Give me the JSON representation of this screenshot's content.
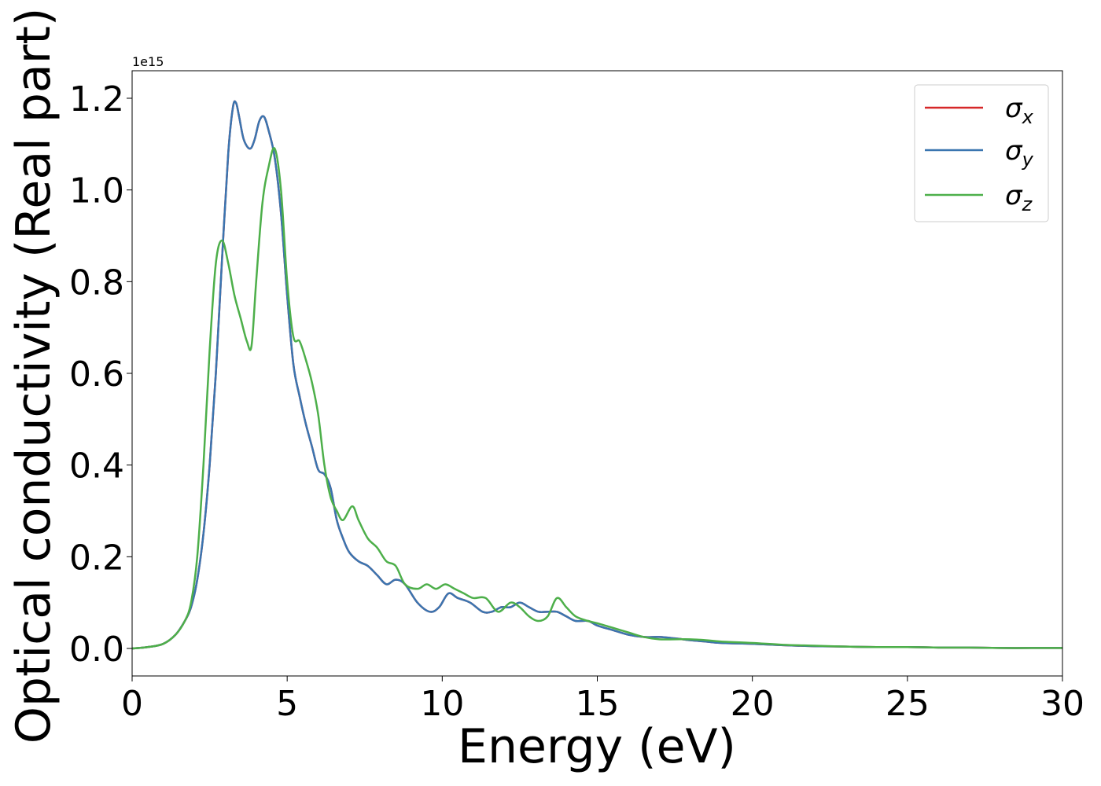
{
  "chart_data": {
    "type": "line",
    "xlabel": "Energy (eV)",
    "ylabel": "Optical conductivity (Real part)",
    "y_offset_label": "1e15",
    "xlim": [
      0,
      30
    ],
    "ylim": [
      -0.06,
      1.26
    ],
    "x_ticks": [
      0,
      5,
      10,
      15,
      20,
      25,
      30
    ],
    "y_ticks": [
      0.0,
      0.2,
      0.4,
      0.6,
      0.8,
      1.0,
      1.2
    ],
    "x_tick_labels": [
      "0",
      "5",
      "10",
      "15",
      "20",
      "25",
      "30"
    ],
    "y_tick_labels": [
      "0.0",
      "0.2",
      "0.4",
      "0.6",
      "0.8",
      "1.0",
      "1.2"
    ],
    "legend_position": "upper-right",
    "grid": false,
    "series": [
      {
        "name": "σx",
        "legend_base": "σ",
        "legend_sub": "x",
        "color": "#d62728",
        "x": [
          0,
          0.5,
          1.0,
          1.4,
          1.7,
          1.9,
          2.1,
          2.3,
          2.5,
          2.7,
          2.9,
          3.1,
          3.25,
          3.35,
          3.45,
          3.6,
          3.8,
          3.95,
          4.1,
          4.25,
          4.4,
          4.6,
          4.8,
          5.0,
          5.2,
          5.4,
          5.6,
          5.8,
          6.0,
          6.2,
          6.4,
          6.6,
          6.8,
          7.0,
          7.3,
          7.6,
          7.9,
          8.2,
          8.5,
          8.8,
          9.2,
          9.6,
          9.9,
          10.2,
          10.5,
          10.9,
          11.3,
          11.6,
          11.9,
          12.2,
          12.5,
          12.8,
          13.1,
          13.4,
          13.7,
          14.0,
          14.3,
          14.7,
          15.0,
          15.5,
          16.0,
          16.5,
          17.0,
          17.5,
          18.0,
          18.5,
          19.0,
          20.0,
          21.0,
          22.0,
          23.0,
          24.0,
          25.0,
          26.0,
          27.0,
          28.0,
          29.0,
          30.0
        ],
        "y": [
          0.0,
          0.003,
          0.01,
          0.03,
          0.06,
          0.09,
          0.15,
          0.25,
          0.4,
          0.6,
          0.85,
          1.08,
          1.18,
          1.19,
          1.16,
          1.11,
          1.09,
          1.11,
          1.15,
          1.16,
          1.13,
          1.07,
          0.95,
          0.77,
          0.62,
          0.55,
          0.49,
          0.44,
          0.39,
          0.38,
          0.35,
          0.28,
          0.24,
          0.21,
          0.19,
          0.18,
          0.16,
          0.14,
          0.15,
          0.14,
          0.1,
          0.08,
          0.09,
          0.12,
          0.11,
          0.1,
          0.08,
          0.08,
          0.09,
          0.09,
          0.1,
          0.09,
          0.08,
          0.08,
          0.08,
          0.07,
          0.06,
          0.06,
          0.05,
          0.04,
          0.03,
          0.025,
          0.025,
          0.022,
          0.018,
          0.015,
          0.012,
          0.01,
          0.007,
          0.005,
          0.004,
          0.003,
          0.003,
          0.002,
          0.002,
          0.001,
          0.001,
          0.001
        ]
      },
      {
        "name": "σy",
        "legend_base": "σ",
        "legend_sub": "y",
        "color": "#3a75b0",
        "x": [
          0,
          0.5,
          1.0,
          1.4,
          1.7,
          1.9,
          2.1,
          2.3,
          2.5,
          2.7,
          2.9,
          3.1,
          3.25,
          3.35,
          3.45,
          3.6,
          3.8,
          3.95,
          4.1,
          4.25,
          4.4,
          4.6,
          4.8,
          5.0,
          5.2,
          5.4,
          5.6,
          5.8,
          6.0,
          6.2,
          6.4,
          6.6,
          6.8,
          7.0,
          7.3,
          7.6,
          7.9,
          8.2,
          8.5,
          8.8,
          9.2,
          9.6,
          9.9,
          10.2,
          10.5,
          10.9,
          11.3,
          11.6,
          11.9,
          12.2,
          12.5,
          12.8,
          13.1,
          13.4,
          13.7,
          14.0,
          14.3,
          14.7,
          15.0,
          15.5,
          16.0,
          16.5,
          17.0,
          17.5,
          18.0,
          18.5,
          19.0,
          20.0,
          21.0,
          22.0,
          23.0,
          24.0,
          25.0,
          26.0,
          27.0,
          28.0,
          29.0,
          30.0
        ],
        "y": [
          0.0,
          0.003,
          0.01,
          0.03,
          0.06,
          0.09,
          0.15,
          0.25,
          0.4,
          0.6,
          0.85,
          1.08,
          1.18,
          1.19,
          1.16,
          1.11,
          1.09,
          1.11,
          1.15,
          1.16,
          1.13,
          1.07,
          0.95,
          0.77,
          0.62,
          0.55,
          0.49,
          0.44,
          0.39,
          0.38,
          0.35,
          0.28,
          0.24,
          0.21,
          0.19,
          0.18,
          0.16,
          0.14,
          0.15,
          0.14,
          0.1,
          0.08,
          0.09,
          0.12,
          0.11,
          0.1,
          0.08,
          0.08,
          0.09,
          0.09,
          0.1,
          0.09,
          0.08,
          0.08,
          0.08,
          0.07,
          0.06,
          0.06,
          0.05,
          0.04,
          0.03,
          0.025,
          0.025,
          0.022,
          0.018,
          0.015,
          0.012,
          0.01,
          0.007,
          0.005,
          0.004,
          0.003,
          0.003,
          0.002,
          0.002,
          0.001,
          0.001,
          0.001
        ]
      },
      {
        "name": "σz",
        "legend_base": "σ",
        "legend_sub": "z",
        "color": "#4daf4a",
        "x": [
          0,
          0.5,
          1.0,
          1.4,
          1.7,
          1.9,
          2.1,
          2.3,
          2.5,
          2.7,
          2.9,
          3.1,
          3.3,
          3.5,
          3.7,
          3.85,
          4.0,
          4.2,
          4.4,
          4.6,
          4.8,
          5.0,
          5.2,
          5.4,
          5.6,
          5.8,
          6.0,
          6.2,
          6.4,
          6.6,
          6.8,
          7.1,
          7.3,
          7.6,
          7.9,
          8.2,
          8.5,
          8.8,
          9.2,
          9.5,
          9.8,
          10.1,
          10.4,
          10.7,
          11.0,
          11.4,
          11.8,
          12.2,
          12.5,
          12.8,
          13.1,
          13.4,
          13.7,
          14.0,
          14.3,
          14.7,
          15.0,
          15.5,
          16.0,
          16.5,
          17.0,
          17.5,
          18.0,
          18.5,
          19.0,
          20.0,
          21.0,
          22.0,
          23.0,
          24.0,
          25.0,
          26.0,
          27.0,
          28.0,
          29.0,
          30.0
        ],
        "y": [
          0.0,
          0.003,
          0.01,
          0.03,
          0.06,
          0.1,
          0.2,
          0.4,
          0.65,
          0.84,
          0.89,
          0.84,
          0.77,
          0.72,
          0.67,
          0.66,
          0.8,
          0.97,
          1.05,
          1.09,
          1.0,
          0.8,
          0.68,
          0.67,
          0.63,
          0.58,
          0.51,
          0.4,
          0.33,
          0.3,
          0.28,
          0.31,
          0.28,
          0.24,
          0.22,
          0.19,
          0.18,
          0.14,
          0.13,
          0.14,
          0.13,
          0.14,
          0.13,
          0.12,
          0.11,
          0.11,
          0.08,
          0.1,
          0.09,
          0.07,
          0.06,
          0.07,
          0.11,
          0.09,
          0.07,
          0.06,
          0.055,
          0.045,
          0.035,
          0.025,
          0.02,
          0.02,
          0.02,
          0.018,
          0.015,
          0.012,
          0.008,
          0.006,
          0.004,
          0.003,
          0.003,
          0.002,
          0.002,
          0.001,
          0.001,
          0.001
        ]
      }
    ]
  }
}
